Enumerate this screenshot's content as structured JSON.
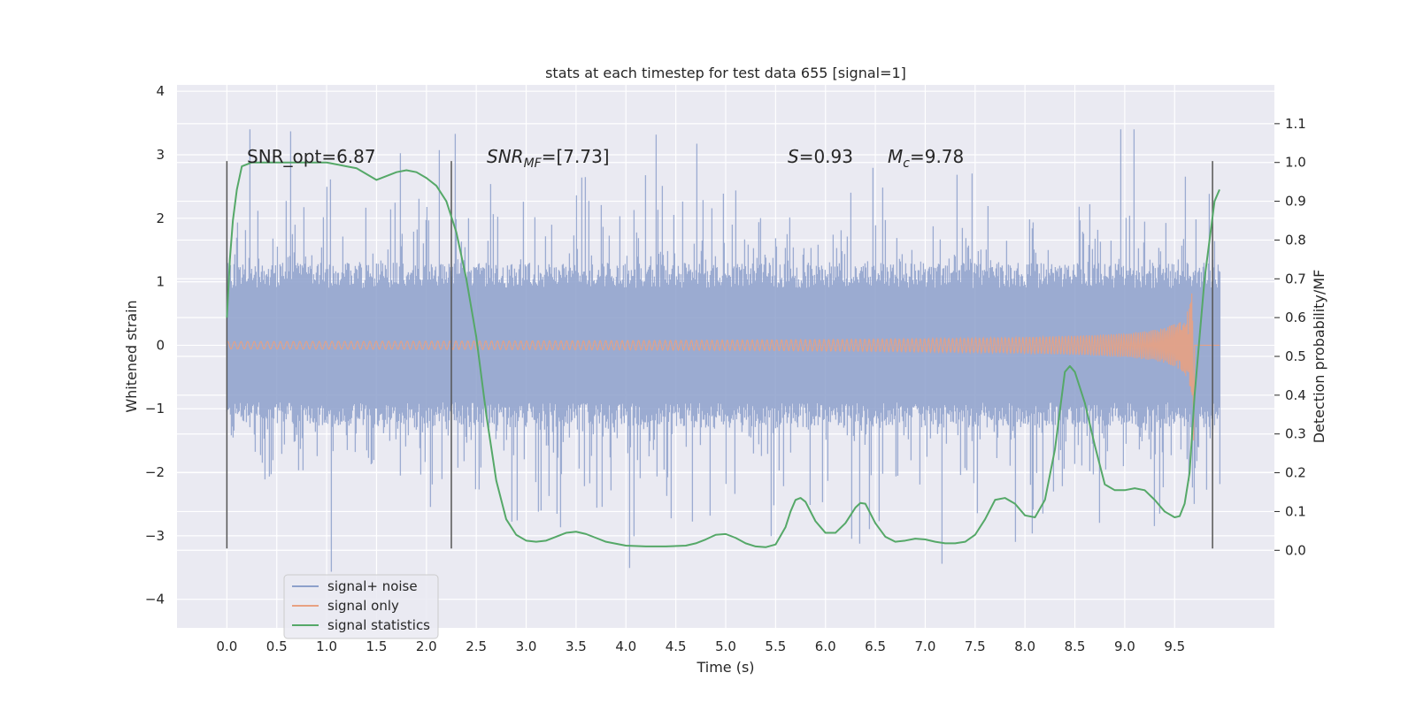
{
  "chart_data": {
    "type": "line",
    "title": "stats at each timestep for test data 655 [signal=1]",
    "xlabel": "Time (s)",
    "ylabel": "Whitened strain",
    "ylabel_right": "Detection probability/MF",
    "xlim": [
      -0.5,
      10.5
    ],
    "ylim": [
      -4.45,
      4.1
    ],
    "ylim_right": [
      -0.2,
      1.2
    ],
    "grid": true,
    "legend_position": "lower-left",
    "x_ticks": [
      "0.0",
      "0.5",
      "1.0",
      "1.5",
      "2.0",
      "2.5",
      "3.0",
      "3.5",
      "4.0",
      "4.5",
      "5.0",
      "5.5",
      "6.0",
      "6.5",
      "7.0",
      "7.5",
      "8.0",
      "8.5",
      "9.0",
      "9.5"
    ],
    "y_ticks": [
      "4",
      "3",
      "2",
      "1",
      "0",
      "−1",
      "−2",
      "−3",
      "−4"
    ],
    "y_ticks_right": [
      "1.1",
      "1.0",
      "0.9",
      "0.8",
      "0.7",
      "0.6",
      "0.5",
      "0.4",
      "0.3",
      "0.2",
      "0.1",
      "0.0"
    ],
    "annotations": {
      "snr_opt": "SNR_opt=6.87",
      "snr_mf_main": "SNR",
      "snr_mf_sub": "MF",
      "snr_mf_value": "=[7.73]",
      "s_main": "S",
      "s_value": "=0.93",
      "mc_main": "M",
      "mc_sub": "c",
      "mc_value": "=9.78"
    },
    "vertical_markers": [
      {
        "x": 0.0,
        "y_range": [
          -3.2,
          2.9
        ]
      },
      {
        "x": 2.25,
        "y_range": [
          -3.2,
          2.9
        ]
      },
      {
        "x": 9.88,
        "y_range": [
          -3.2,
          2.9
        ]
      }
    ],
    "series": [
      {
        "name": "signal+ noise",
        "color": "#8da0cb",
        "kind": "noise",
        "x_range": [
          0.0,
          9.95
        ],
        "std": 1.05
      },
      {
        "name": "signal only",
        "color": "#e8a182",
        "kind": "chirp",
        "x_range": [
          0.0,
          9.68
        ],
        "peak_amplitude": 1.0
      },
      {
        "name": "signal statistics",
        "color": "#55a868",
        "kind": "line",
        "axis": "right",
        "x": [
          0.0,
          0.03,
          0.06,
          0.1,
          0.15,
          0.25,
          0.4,
          0.6,
          0.8,
          1.0,
          1.1,
          1.2,
          1.3,
          1.4,
          1.5,
          1.6,
          1.7,
          1.8,
          1.9,
          2.0,
          2.1,
          2.2,
          2.3,
          2.4,
          2.5,
          2.6,
          2.7,
          2.8,
          2.9,
          3.0,
          3.1,
          3.2,
          3.3,
          3.4,
          3.5,
          3.6,
          3.7,
          3.8,
          4.0,
          4.2,
          4.4,
          4.6,
          4.7,
          4.8,
          4.9,
          5.0,
          5.1,
          5.2,
          5.3,
          5.4,
          5.5,
          5.6,
          5.65,
          5.7,
          5.75,
          5.8,
          5.9,
          6.0,
          6.1,
          6.2,
          6.3,
          6.35,
          6.4,
          6.5,
          6.6,
          6.7,
          6.8,
          6.9,
          7.0,
          7.1,
          7.2,
          7.3,
          7.4,
          7.5,
          7.6,
          7.7,
          7.8,
          7.9,
          8.0,
          8.1,
          8.2,
          8.3,
          8.4,
          8.45,
          8.5,
          8.6,
          8.7,
          8.8,
          8.9,
          9.0,
          9.1,
          9.2,
          9.3,
          9.4,
          9.5,
          9.55,
          9.6,
          9.65,
          9.7,
          9.8,
          9.9,
          9.95
        ],
        "values": [
          0.6,
          0.75,
          0.85,
          0.93,
          0.99,
          1.0,
          1.0,
          1.0,
          1.0,
          1.0,
          0.995,
          0.99,
          0.985,
          0.97,
          0.955,
          0.965,
          0.975,
          0.98,
          0.975,
          0.96,
          0.94,
          0.9,
          0.82,
          0.7,
          0.55,
          0.35,
          0.18,
          0.08,
          0.04,
          0.025,
          0.022,
          0.025,
          0.035,
          0.045,
          0.048,
          0.042,
          0.032,
          0.022,
          0.012,
          0.01,
          0.01,
          0.012,
          0.018,
          0.028,
          0.04,
          0.042,
          0.032,
          0.018,
          0.01,
          0.008,
          0.015,
          0.06,
          0.1,
          0.13,
          0.135,
          0.125,
          0.075,
          0.045,
          0.045,
          0.07,
          0.11,
          0.122,
          0.12,
          0.07,
          0.035,
          0.022,
          0.025,
          0.03,
          0.028,
          0.022,
          0.018,
          0.018,
          0.022,
          0.04,
          0.08,
          0.13,
          0.135,
          0.12,
          0.09,
          0.085,
          0.13,
          0.26,
          0.46,
          0.475,
          0.46,
          0.38,
          0.27,
          0.17,
          0.155,
          0.155,
          0.16,
          0.155,
          0.13,
          0.1,
          0.085,
          0.088,
          0.12,
          0.2,
          0.4,
          0.7,
          0.9,
          0.93
        ]
      }
    ]
  }
}
